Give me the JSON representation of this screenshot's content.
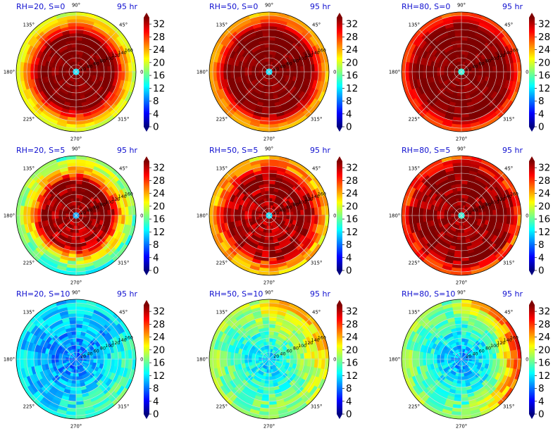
{
  "figure": {
    "time_label": "95 hr",
    "angle_tick_labels": [
      "90°",
      "45°",
      "0°",
      "315°",
      "270°",
      "225°",
      "180°",
      "135°"
    ],
    "radial_tick_labels": [
      "20",
      "40",
      "60",
      "80",
      "100",
      "120",
      "140",
      "160"
    ],
    "colorbar_tick_labels": [
      "0",
      "4",
      "8",
      "12",
      "16",
      "20",
      "24",
      "28",
      "32"
    ],
    "colormap": [
      "#00007f",
      "#0000ff",
      "#007fff",
      "#00ffff",
      "#7fff7f",
      "#ffff00",
      "#ff7f00",
      "#ff0000",
      "#7f0000"
    ],
    "panels": [
      {
        "title": "RH=20, S=0",
        "time": "95 hr"
      },
      {
        "title": "RH=50, S=0",
        "time": "95 hr"
      },
      {
        "title": "RH=80, S=0",
        "time": "95 hr"
      },
      {
        "title": "RH=20, S=5",
        "time": "95 hr"
      },
      {
        "title": "RH=50, S=5",
        "time": "95 hr"
      },
      {
        "title": "RH=80, S=5",
        "time": "95 hr"
      },
      {
        "title": "RH=20, S=10",
        "time": "95 hr"
      },
      {
        "title": "RH=50, S=10",
        "time": "95 hr"
      },
      {
        "title": "RH=80, S=10",
        "time": "95 hr"
      }
    ]
  },
  "chart_data": [
    {
      "type": "heatmap",
      "projection": "polar",
      "title": "RH=20, S=0",
      "annotation": "95 hr",
      "r_ticks": [
        20,
        40,
        60,
        80,
        100,
        120,
        140,
        160
      ],
      "theta_ticks_deg": [
        0,
        45,
        90,
        135,
        180,
        225,
        270,
        315
      ],
      "colorbar": {
        "ticks": [
          0,
          4,
          8,
          12,
          16,
          20,
          24,
          28,
          32
        ],
        "range": [
          0,
          34
        ],
        "extend": "both"
      },
      "summary": {
        "eye_value": 12,
        "core_value": 34,
        "core_radius_outer": 105,
        "ring_value": 26,
        "outer_value": 18,
        "asymmetry": "none"
      }
    },
    {
      "type": "heatmap",
      "projection": "polar",
      "title": "RH=50, S=0",
      "annotation": "95 hr",
      "r_ticks": [
        20,
        40,
        60,
        80,
        100,
        120,
        140,
        160
      ],
      "theta_ticks_deg": [
        0,
        45,
        90,
        135,
        180,
        225,
        270,
        315
      ],
      "colorbar": {
        "ticks": [
          0,
          4,
          8,
          12,
          16,
          20,
          24,
          28,
          32
        ],
        "range": [
          0,
          34
        ],
        "extend": "both"
      },
      "summary": {
        "eye_value": 12,
        "core_value": 34,
        "core_radius_outer": 120,
        "ring_value": 26,
        "outer_value": 20,
        "asymmetry": "none"
      }
    },
    {
      "type": "heatmap",
      "projection": "polar",
      "title": "RH=80, S=0",
      "annotation": "95 hr",
      "r_ticks": [
        20,
        40,
        60,
        80,
        100,
        120,
        140,
        160
      ],
      "theta_ticks_deg": [
        0,
        45,
        90,
        135,
        180,
        225,
        270,
        315
      ],
      "colorbar": {
        "ticks": [
          0,
          4,
          8,
          12,
          16,
          20,
          24,
          28,
          32
        ],
        "range": [
          0,
          34
        ],
        "extend": "both"
      },
      "summary": {
        "eye_value": 14,
        "core_value": 34,
        "core_radius_outer": 130,
        "ring_value": 28,
        "outer_value": 22,
        "asymmetry": "none"
      }
    },
    {
      "type": "heatmap",
      "projection": "polar",
      "title": "RH=20, S=5",
      "annotation": "95 hr",
      "r_ticks": [
        20,
        40,
        60,
        80,
        100,
        120,
        140,
        160
      ],
      "theta_ticks_deg": [
        0,
        45,
        90,
        135,
        180,
        225,
        270,
        315
      ],
      "colorbar": {
        "ticks": [
          0,
          4,
          8,
          12,
          16,
          20,
          24,
          28,
          32
        ],
        "range": [
          0,
          34
        ],
        "extend": "both"
      },
      "summary": {
        "eye_value": 10,
        "core_value": 34,
        "core_radius_outer": 95,
        "ring_value": 24,
        "outer_value": 17,
        "asymmetry": "weak, reduced to south"
      }
    },
    {
      "type": "heatmap",
      "projection": "polar",
      "title": "RH=50, S=5",
      "annotation": "95 hr",
      "r_ticks": [
        20,
        40,
        60,
        80,
        100,
        120,
        140,
        160
      ],
      "theta_ticks_deg": [
        0,
        45,
        90,
        135,
        180,
        225,
        270,
        315
      ],
      "colorbar": {
        "ticks": [
          0,
          4,
          8,
          12,
          16,
          20,
          24,
          28,
          32
        ],
        "range": [
          0,
          34
        ],
        "extend": "both"
      },
      "summary": {
        "eye_value": 12,
        "core_value": 33,
        "core_radius_outer": 115,
        "ring_value": 26,
        "outer_value": 20,
        "asymmetry": "patchy"
      }
    },
    {
      "type": "heatmap",
      "projection": "polar",
      "title": "RH=80, S=5",
      "annotation": "95 hr",
      "r_ticks": [
        20,
        40,
        60,
        80,
        100,
        120,
        140,
        160
      ],
      "theta_ticks_deg": [
        0,
        45,
        90,
        135,
        180,
        225,
        270,
        315
      ],
      "colorbar": {
        "ticks": [
          0,
          4,
          8,
          12,
          16,
          20,
          24,
          28,
          32
        ],
        "range": [
          0,
          34
        ],
        "extend": "both"
      },
      "summary": {
        "eye_value": 14,
        "core_value": 34,
        "core_radius_outer": 130,
        "ring_value": 28,
        "outer_value": 22,
        "asymmetry": "weak"
      }
    },
    {
      "type": "heatmap",
      "projection": "polar",
      "title": "RH=20, S=10",
      "annotation": "95 hr",
      "r_ticks": [
        20,
        40,
        60,
        80,
        100,
        120,
        140,
        160
      ],
      "theta_ticks_deg": [
        0,
        45,
        90,
        135,
        180,
        225,
        270,
        315
      ],
      "colorbar": {
        "ticks": [
          0,
          4,
          8,
          12,
          16,
          20,
          24,
          28,
          32
        ],
        "range": [
          0,
          34
        ],
        "extend": "both"
      },
      "summary": {
        "eye_value": 8,
        "core_value": 10,
        "core_radius_outer": 0,
        "ring_value": 11,
        "outer_value": 12,
        "asymmetry": "no core, higher values to south-east"
      }
    },
    {
      "type": "heatmap",
      "projection": "polar",
      "title": "RH=50, S=10",
      "annotation": "95 hr",
      "r_ticks": [
        20,
        40,
        60,
        80,
        100,
        120,
        140,
        160
      ],
      "theta_ticks_deg": [
        0,
        45,
        90,
        135,
        180,
        225,
        270,
        315
      ],
      "colorbar": {
        "ticks": [
          0,
          4,
          8,
          12,
          16,
          20,
          24,
          28,
          32
        ],
        "range": [
          0,
          34
        ],
        "extend": "both"
      },
      "summary": {
        "eye_value": 11,
        "core_value": 12,
        "core_radius_outer": 0,
        "ring_value": 15,
        "outer_value": 18,
        "asymmetry": "higher values to north-east"
      }
    },
    {
      "type": "heatmap",
      "projection": "polar",
      "title": "RH=80, S=10",
      "annotation": "95 hr",
      "r_ticks": [
        20,
        40,
        60,
        80,
        100,
        120,
        140,
        160
      ],
      "theta_ticks_deg": [
        0,
        45,
        90,
        135,
        180,
        225,
        270,
        315
      ],
      "colorbar": {
        "ticks": [
          0,
          4,
          8,
          12,
          16,
          20,
          24,
          28,
          32
        ],
        "range": [
          0,
          34
        ],
        "extend": "both"
      },
      "summary": {
        "eye_value": 9,
        "core_value": 11,
        "core_radius_outer": 0,
        "ring_value": 14,
        "outer_value": 18,
        "asymmetry": "hot spot to east (~28)"
      }
    }
  ]
}
